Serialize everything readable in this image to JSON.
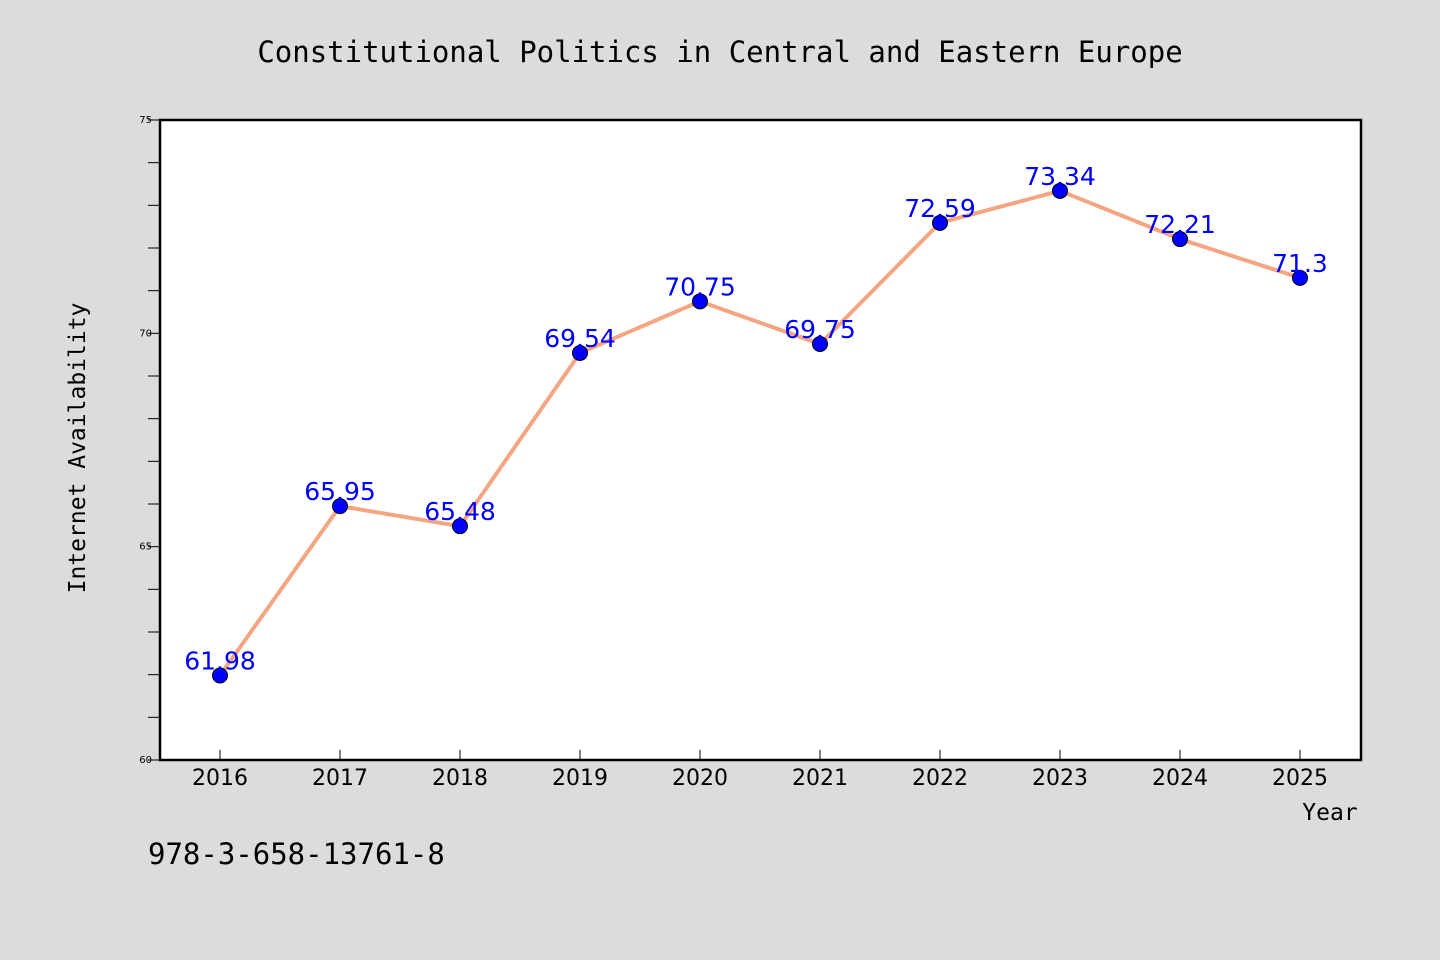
{
  "chart_data": {
    "type": "line",
    "title": "Constitutional Politics in Central and Eastern Europe",
    "xlabel": "Year",
    "ylabel": "Internet Availability",
    "x": [
      "2016",
      "2017",
      "2018",
      "2019",
      "2020",
      "2021",
      "2022",
      "2023",
      "2024",
      "2025"
    ],
    "y": [
      61.98,
      65.95,
      65.48,
      69.54,
      70.75,
      69.75,
      72.59,
      73.34,
      72.21,
      71.3
    ],
    "data_labels": [
      "61.98",
      "65.95",
      "65.48",
      "69.54",
      "70.75",
      "69.75",
      "72.59",
      "73.34",
      "72.21",
      "71.3"
    ],
    "ylim": [
      60,
      75
    ],
    "yticks": [
      "60",
      "65",
      "70",
      "75"
    ],
    "grid": false,
    "legend": "none",
    "line_color": "#f4a582",
    "marker_color": "#0000ff",
    "label_color": "#0000ff",
    "background": "#dcdcdc",
    "plot_background": "#ffffff"
  },
  "footer": {
    "isbn": "978-3-658-13761-8"
  }
}
